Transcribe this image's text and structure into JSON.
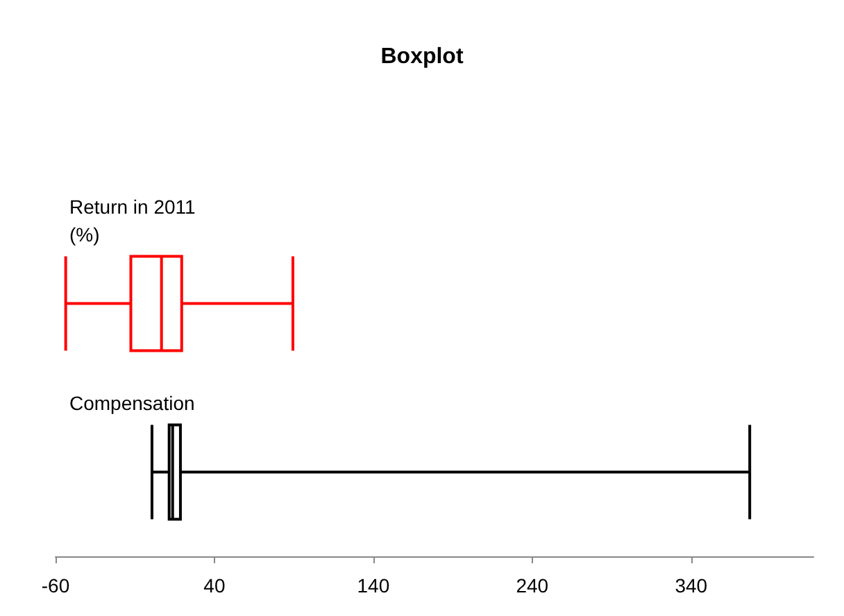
{
  "chart_data": {
    "type": "box",
    "title": "Boxplot",
    "orientation": "horizontal",
    "categories": [
      "Return in 2011 (%)",
      "Compensation"
    ],
    "boxes": [
      {
        "low": -53.6,
        "q1": -12.6,
        "median": 6.7,
        "q3": 19.4,
        "high": 89.4
      },
      {
        "low": 0.7,
        "q1": 11.5,
        "median": 13.7,
        "q3": 18.6,
        "high": 376.9
      }
    ],
    "colors": [
      "#ff0000",
      "#000000"
    ],
    "xlim": [
      -60,
      417
    ],
    "xticks": [
      -60,
      40,
      140,
      240,
      340
    ]
  }
}
